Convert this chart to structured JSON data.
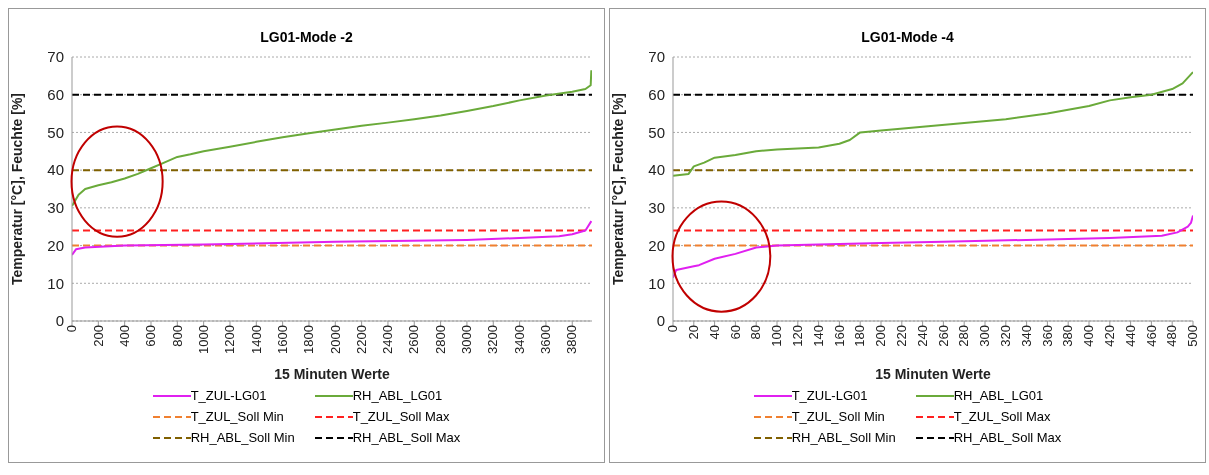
{
  "chart_data": [
    {
      "type": "line",
      "title": "LG01-Mode -2",
      "xlabel": "15 Minuten Werte",
      "ylabel": "Temperatur [°C], Feuchte [%]",
      "xlim": [
        0,
        3950
      ],
      "xticks": [
        0,
        200,
        400,
        600,
        800,
        1000,
        1200,
        1400,
        1600,
        1800,
        2000,
        2200,
        2400,
        2600,
        2800,
        3000,
        3200,
        3400,
        3600,
        3800
      ],
      "ylim": [
        0,
        70
      ],
      "yticks": [
        0,
        10,
        20,
        30,
        40,
        50,
        60,
        70
      ],
      "grid": "y",
      "legend": "bottom",
      "line_style": "solid",
      "marker": "none",
      "series": [
        {
          "name": "T_ZUL-LG01",
          "color": "#e020f0",
          "x": [
            0,
            30,
            100,
            400,
            1000,
            2000,
            3000,
            3400,
            3700,
            3800,
            3900,
            3945
          ],
          "values": [
            17.5,
            19,
            19.5,
            20,
            20.3,
            21,
            21.5,
            22,
            22.5,
            23,
            24,
            26.5
          ]
        },
        {
          "name": "RH_ABL_LG01",
          "color": "#6aaa3a",
          "x": [
            0,
            50,
            100,
            200,
            300,
            400,
            500,
            600,
            700,
            800,
            900,
            1000,
            1200,
            1400,
            1600,
            1800,
            2000,
            2200,
            2400,
            2600,
            2800,
            3000,
            3200,
            3400,
            3600,
            3800,
            3900,
            3940,
            3945
          ],
          "values": [
            30.5,
            33.5,
            35,
            36,
            36.8,
            37.8,
            39,
            40.5,
            42,
            43.5,
            44.2,
            45,
            46.2,
            47.5,
            48.7,
            49.8,
            50.8,
            51.8,
            52.6,
            53.5,
            54.5,
            55.7,
            57,
            58.5,
            59.8,
            60.8,
            61.5,
            62.5,
            66.5
          ]
        }
      ],
      "ref_lines": [
        {
          "axis": "y",
          "value": 20,
          "label": "T_ZUL_Soll Min",
          "color": "#f08030",
          "line_style": "dashed"
        },
        {
          "axis": "y",
          "value": 24,
          "label": "T_ZUL_Soll Max",
          "color": "#ff2020",
          "line_style": "dashed"
        },
        {
          "axis": "y",
          "value": 40,
          "label": "RH_ABL_Soll Min",
          "color": "#806000",
          "line_style": "dashed"
        },
        {
          "axis": "y",
          "value": 60,
          "label": "RH_ABL_Soll Max",
          "color": "#000000",
          "line_style": "dashed"
        }
      ]
    },
    {
      "type": "line",
      "title": "LG01-Mode -4",
      "xlabel": "15 Minuten Werte",
      "ylabel": "Temperatur [°C], Feuchte [%]",
      "xlim": [
        0,
        500
      ],
      "xticks": [
        0,
        20,
        40,
        60,
        80,
        100,
        120,
        140,
        160,
        180,
        200,
        220,
        240,
        260,
        280,
        300,
        320,
        340,
        360,
        380,
        400,
        420,
        440,
        460,
        480,
        500
      ],
      "ylim": [
        0,
        70
      ],
      "yticks": [
        0,
        10,
        20,
        30,
        40,
        50,
        60,
        70
      ],
      "grid": "y",
      "legend": "bottom",
      "line_style": "solid",
      "marker": "none",
      "series": [
        {
          "name": "T_ZUL-LG01",
          "color": "#e020f0",
          "x": [
            0,
            3,
            20,
            25,
            40,
            60,
            80,
            100,
            140,
            200,
            260,
            340,
            420,
            470,
            485,
            495,
            498,
            500
          ],
          "values": [
            11.5,
            13.5,
            14.5,
            14.8,
            16.5,
            17.8,
            19.5,
            20,
            20.3,
            20.7,
            21,
            21.5,
            22,
            22.6,
            23.5,
            25,
            26,
            28
          ]
        },
        {
          "name": "RH_ABL_LG01",
          "color": "#6aaa3a",
          "x": [
            0,
            15,
            20,
            30,
            40,
            60,
            80,
            100,
            140,
            160,
            170,
            180,
            200,
            240,
            280,
            320,
            360,
            400,
            420,
            440,
            460,
            480,
            490,
            500
          ],
          "values": [
            38.5,
            39,
            41,
            42,
            43.3,
            44,
            45,
            45.5,
            46,
            47,
            48,
            50,
            50.5,
            51.5,
            52.5,
            53.5,
            55,
            57,
            58.5,
            59.3,
            60,
            61.5,
            63,
            66
          ]
        }
      ],
      "ref_lines": [
        {
          "axis": "y",
          "value": 20,
          "label": "T_ZUL_Soll Min",
          "color": "#f08030",
          "line_style": "dashed"
        },
        {
          "axis": "y",
          "value": 24,
          "label": "T_ZUL_Soll Max",
          "color": "#ff2020",
          "line_style": "dashed"
        },
        {
          "axis": "y",
          "value": 40,
          "label": "RH_ABL_Soll Min",
          "color": "#806000",
          "line_style": "dashed"
        },
        {
          "axis": "y",
          "value": 60,
          "label": "RH_ABL_Soll Max",
          "color": "#000000",
          "line_style": "dashed"
        }
      ]
    }
  ]
}
